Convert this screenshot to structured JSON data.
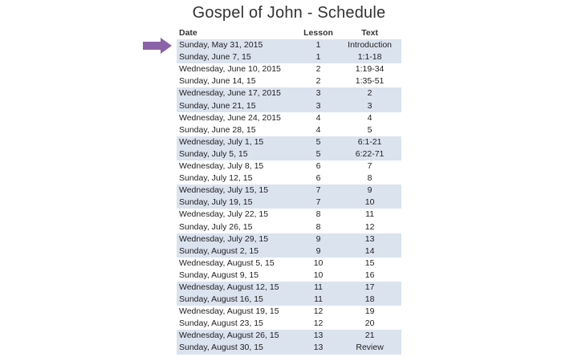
{
  "title": "Gospel of John - Schedule",
  "colors": {
    "row_shade": "#dbe3ef",
    "arrow": "#8b63a8"
  },
  "icons": {
    "current_marker": "right-arrow-icon"
  },
  "headers": {
    "date": "Date",
    "lesson": "Lesson",
    "text": "Text"
  },
  "rows": [
    {
      "date": "Sunday, May 31, 2015",
      "lesson": "1",
      "text": "Introduction",
      "shaded": true
    },
    {
      "date": "Sunday, June 7, 15",
      "lesson": "1",
      "text": "1:1-18",
      "shaded": true
    },
    {
      "date": "Wednesday, June 10, 2015",
      "lesson": "2",
      "text": "1:19-34",
      "shaded": false
    },
    {
      "date": "Sunday, June 14, 15",
      "lesson": "2",
      "text": "1:35-51",
      "shaded": false
    },
    {
      "date": "Wednesday, June 17, 2015",
      "lesson": "3",
      "text": "2",
      "shaded": true
    },
    {
      "date": "Sunday, June 21, 15",
      "lesson": "3",
      "text": "3",
      "shaded": true
    },
    {
      "date": "Wednesday, June 24, 2015",
      "lesson": "4",
      "text": "4",
      "shaded": false
    },
    {
      "date": "Sunday, June 28, 15",
      "lesson": "4",
      "text": "5",
      "shaded": false
    },
    {
      "date": "Wednesday, July 1, 15",
      "lesson": "5",
      "text": "6:1-21",
      "shaded": true
    },
    {
      "date": "Sunday, July 5, 15",
      "lesson": "5",
      "text": "6:22-71",
      "shaded": true
    },
    {
      "date": "Wednesday, July 8, 15",
      "lesson": "6",
      "text": "7",
      "shaded": false
    },
    {
      "date": "Sunday, July 12, 15",
      "lesson": "6",
      "text": "8",
      "shaded": false
    },
    {
      "date": "Wednesday, July 15, 15",
      "lesson": "7",
      "text": "9",
      "shaded": true
    },
    {
      "date": "Sunday, July 19, 15",
      "lesson": "7",
      "text": "10",
      "shaded": true
    },
    {
      "date": "Wednesday, July 22, 15",
      "lesson": "8",
      "text": "11",
      "shaded": false
    },
    {
      "date": "Sunday, July 26, 15",
      "lesson": "8",
      "text": "12",
      "shaded": false
    },
    {
      "date": "Wednesday, July 29, 15",
      "lesson": "9",
      "text": "13",
      "shaded": true
    },
    {
      "date": "Sunday, August 2, 15",
      "lesson": "9",
      "text": "14",
      "shaded": true
    },
    {
      "date": "Wednesday, August 5, 15",
      "lesson": "10",
      "text": "15",
      "shaded": false
    },
    {
      "date": "Sunday, August 9, 15",
      "lesson": "10",
      "text": "16",
      "shaded": false
    },
    {
      "date": "Wednesday, August 12, 15",
      "lesson": "11",
      "text": "17",
      "shaded": true
    },
    {
      "date": "Sunday, August 16, 15",
      "lesson": "11",
      "text": "18",
      "shaded": true
    },
    {
      "date": "Wednesday, August 19, 15",
      "lesson": "12",
      "text": "19",
      "shaded": false
    },
    {
      "date": "Sunday, August 23, 15",
      "lesson": "12",
      "text": "20",
      "shaded": false
    },
    {
      "date": "Wednesday, August 26, 15",
      "lesson": "13",
      "text": "21",
      "shaded": true
    },
    {
      "date": "Sunday, August 30, 15",
      "lesson": "13",
      "text": "Review",
      "shaded": true
    }
  ]
}
